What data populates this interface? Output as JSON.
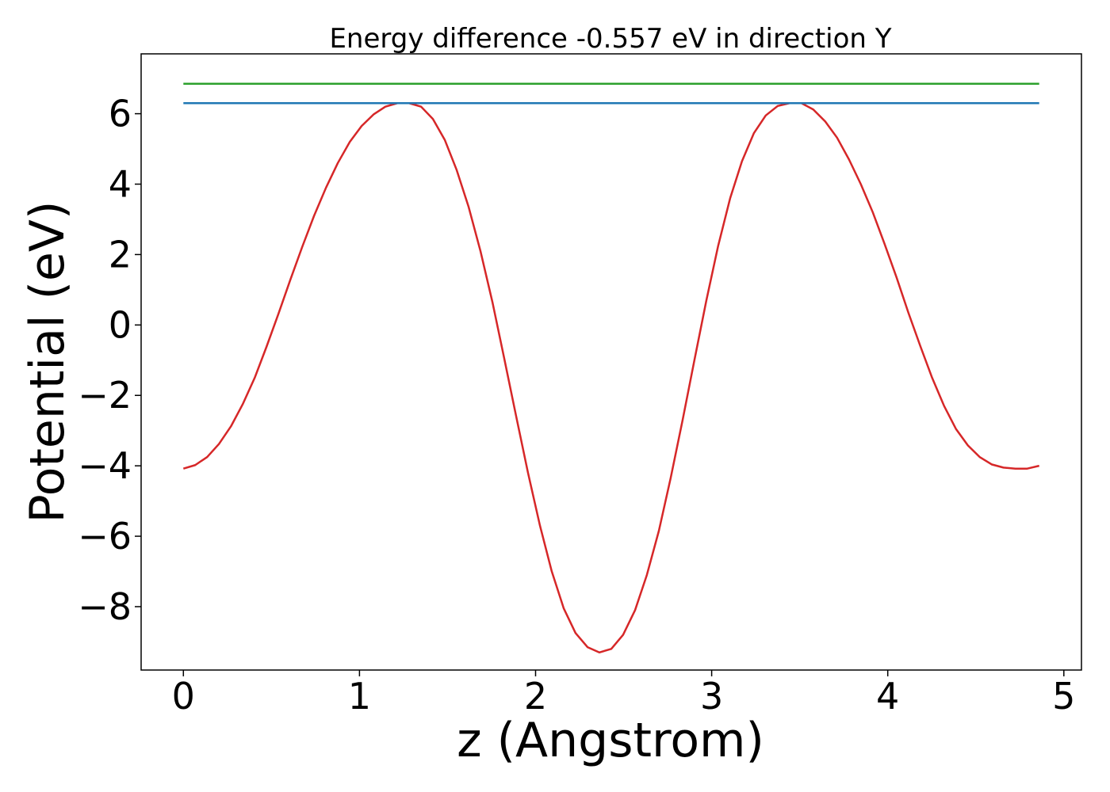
{
  "chart_data": {
    "type": "line",
    "title": "Energy difference -0.557 eV in direction Y",
    "xlabel": "z (Angstrom)",
    "ylabel": "Potential (eV)",
    "xlim": [
      -0.24,
      5.1
    ],
    "ylim": [
      -9.8,
      7.7
    ],
    "xticks": [
      0,
      1,
      2,
      3,
      4,
      5
    ],
    "xtick_labels": [
      "0",
      "1",
      "2",
      "3",
      "4",
      "5"
    ],
    "yticks": [
      6,
      4,
      2,
      0,
      -2,
      -4,
      -6,
      -8
    ],
    "ytick_labels": [
      "6",
      "4",
      "2",
      "0",
      "−2",
      "−4",
      "−6",
      "−8"
    ],
    "grid": false,
    "series": [
      {
        "color": "#d62728",
        "x": [
          0,
          0.067,
          0.135,
          0.202,
          0.27,
          0.337,
          0.405,
          0.472,
          0.54,
          0.607,
          0.675,
          0.742,
          0.81,
          0.877,
          0.945,
          1.012,
          1.08,
          1.147,
          1.215,
          1.282,
          1.35,
          1.417,
          1.485,
          1.552,
          1.62,
          1.687,
          1.755,
          1.822,
          1.89,
          1.957,
          2.025,
          2.092,
          2.16,
          2.227,
          2.295,
          2.362,
          2.43,
          2.497,
          2.565,
          2.632,
          2.7,
          2.767,
          2.835,
          2.902,
          2.97,
          3.037,
          3.105,
          3.172,
          3.24,
          3.307,
          3.375,
          3.442,
          3.51,
          3.577,
          3.645,
          3.712,
          3.78,
          3.847,
          3.915,
          3.982,
          4.05,
          4.117,
          4.185,
          4.252,
          4.32,
          4.387,
          4.455,
          4.522,
          4.59,
          4.657,
          4.725,
          4.792,
          4.86
        ],
        "y": [
          -4.08,
          -3.98,
          -3.75,
          -3.38,
          -2.88,
          -2.25,
          -1.5,
          -0.62,
          0.32,
          1.28,
          2.22,
          3.1,
          3.9,
          4.6,
          5.2,
          5.65,
          5.98,
          6.2,
          6.3,
          6.3,
          6.2,
          5.85,
          5.25,
          4.4,
          3.35,
          2.1,
          0.65,
          -0.95,
          -2.6,
          -4.2,
          -5.7,
          -7.0,
          -8.05,
          -8.75,
          -9.15,
          -9.3,
          -9.2,
          -8.8,
          -8.1,
          -7.1,
          -5.85,
          -4.35,
          -2.7,
          -1.0,
          0.7,
          2.25,
          3.6,
          4.65,
          5.45,
          5.95,
          6.22,
          6.3,
          6.3,
          6.12,
          5.78,
          5.32,
          4.7,
          4.0,
          3.2,
          2.3,
          1.35,
          0.35,
          -0.6,
          -1.5,
          -2.3,
          -2.95,
          -3.42,
          -3.75,
          -3.96,
          -4.05,
          -4.08,
          -4.08,
          -4.0
        ]
      },
      {
        "color": "#1f77b4",
        "x": [
          0,
          4.86
        ],
        "y": [
          6.3,
          6.3
        ]
      },
      {
        "color": "#2ca02c",
        "x": [
          0,
          4.86
        ],
        "y": [
          6.85,
          6.85
        ]
      }
    ]
  }
}
